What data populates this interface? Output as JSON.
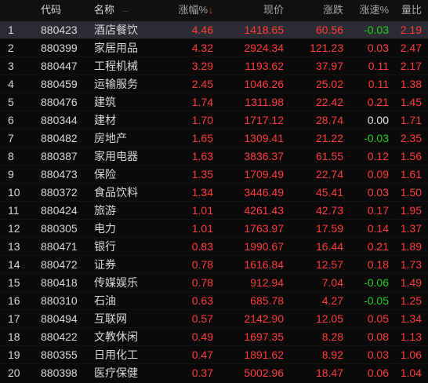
{
  "header": {
    "code": "代码",
    "name": "名称",
    "name_dots": "···",
    "change_pct": "涨幅%",
    "sort_arrow": "↓",
    "price": "现价",
    "change": "涨跌",
    "speed": "涨速%",
    "volume_ratio": "量比"
  },
  "colors": {
    "up": "#ff3c3c",
    "down": "#1fd11f",
    "flat": "#e6e6e6",
    "selected_row": "#2b2b34"
  },
  "rows": [
    {
      "idx": "1",
      "code": "880423",
      "name": "酒店餐饮",
      "pct": "4.46",
      "price": "1418.65",
      "chg": "60.56",
      "speed": "-0.03",
      "speed_dir": "down",
      "ratio": "2.19"
    },
    {
      "idx": "2",
      "code": "880399",
      "name": "家居用品",
      "pct": "4.32",
      "price": "2924.34",
      "chg": "121.23",
      "speed": "0.03",
      "speed_dir": "up",
      "ratio": "2.47"
    },
    {
      "idx": "3",
      "code": "880447",
      "name": "工程机械",
      "pct": "3.29",
      "price": "1193.62",
      "chg": "37.97",
      "speed": "0.11",
      "speed_dir": "up",
      "ratio": "2.17"
    },
    {
      "idx": "4",
      "code": "880459",
      "name": "运输服务",
      "pct": "2.45",
      "price": "1046.26",
      "chg": "25.02",
      "speed": "0.11",
      "speed_dir": "up",
      "ratio": "1.38"
    },
    {
      "idx": "5",
      "code": "880476",
      "name": "建筑",
      "pct": "1.74",
      "price": "1311.98",
      "chg": "22.42",
      "speed": "0.21",
      "speed_dir": "up",
      "ratio": "1.45"
    },
    {
      "idx": "6",
      "code": "880344",
      "name": "建材",
      "pct": "1.70",
      "price": "1717.12",
      "chg": "28.74",
      "speed": "0.00",
      "speed_dir": "flat",
      "ratio": "1.71"
    },
    {
      "idx": "7",
      "code": "880482",
      "name": "房地产",
      "pct": "1.65",
      "price": "1309.41",
      "chg": "21.22",
      "speed": "-0.03",
      "speed_dir": "down",
      "ratio": "2.35"
    },
    {
      "idx": "8",
      "code": "880387",
      "name": "家用电器",
      "pct": "1.63",
      "price": "3836.37",
      "chg": "61.55",
      "speed": "0.12",
      "speed_dir": "up",
      "ratio": "1.56"
    },
    {
      "idx": "9",
      "code": "880473",
      "name": "保险",
      "pct": "1.35",
      "price": "1709.49",
      "chg": "22.74",
      "speed": "0.09",
      "speed_dir": "up",
      "ratio": "1.61"
    },
    {
      "idx": "10",
      "code": "880372",
      "name": "食品饮料",
      "pct": "1.34",
      "price": "3446.49",
      "chg": "45.41",
      "speed": "0.03",
      "speed_dir": "up",
      "ratio": "1.50"
    },
    {
      "idx": "11",
      "code": "880424",
      "name": "旅游",
      "pct": "1.01",
      "price": "4261.43",
      "chg": "42.73",
      "speed": "0.17",
      "speed_dir": "up",
      "ratio": "1.95"
    },
    {
      "idx": "12",
      "code": "880305",
      "name": "电力",
      "pct": "1.01",
      "price": "1763.97",
      "chg": "17.59",
      "speed": "0.14",
      "speed_dir": "up",
      "ratio": "1.37"
    },
    {
      "idx": "13",
      "code": "880471",
      "name": "银行",
      "pct": "0.83",
      "price": "1990.67",
      "chg": "16.44",
      "speed": "0.21",
      "speed_dir": "up",
      "ratio": "1.89"
    },
    {
      "idx": "14",
      "code": "880472",
      "name": "证券",
      "pct": "0.78",
      "price": "1616.84",
      "chg": "12.57",
      "speed": "0.18",
      "speed_dir": "up",
      "ratio": "1.73"
    },
    {
      "idx": "15",
      "code": "880418",
      "name": "传媒娱乐",
      "pct": "0.78",
      "price": "912.94",
      "chg": "7.04",
      "speed": "-0.06",
      "speed_dir": "down",
      "ratio": "1.49"
    },
    {
      "idx": "16",
      "code": "880310",
      "name": "石油",
      "pct": "0.63",
      "price": "685.78",
      "chg": "4.27",
      "speed": "-0.05",
      "speed_dir": "down",
      "ratio": "1.25"
    },
    {
      "idx": "17",
      "code": "880494",
      "name": "互联网",
      "pct": "0.57",
      "price": "2142.90",
      "chg": "12.05",
      "speed": "0.05",
      "speed_dir": "up",
      "ratio": "1.34"
    },
    {
      "idx": "18",
      "code": "880422",
      "name": "文教休闲",
      "pct": "0.49",
      "price": "1697.35",
      "chg": "8.28",
      "speed": "0.08",
      "speed_dir": "up",
      "ratio": "1.13"
    },
    {
      "idx": "19",
      "code": "880355",
      "name": "日用化工",
      "pct": "0.47",
      "price": "1891.62",
      "chg": "8.92",
      "speed": "0.03",
      "speed_dir": "up",
      "ratio": "1.06"
    },
    {
      "idx": "20",
      "code": "880398",
      "name": "医疗保健",
      "pct": "0.37",
      "price": "5002.96",
      "chg": "18.47",
      "speed": "0.06",
      "speed_dir": "up",
      "ratio": "1.04"
    }
  ]
}
